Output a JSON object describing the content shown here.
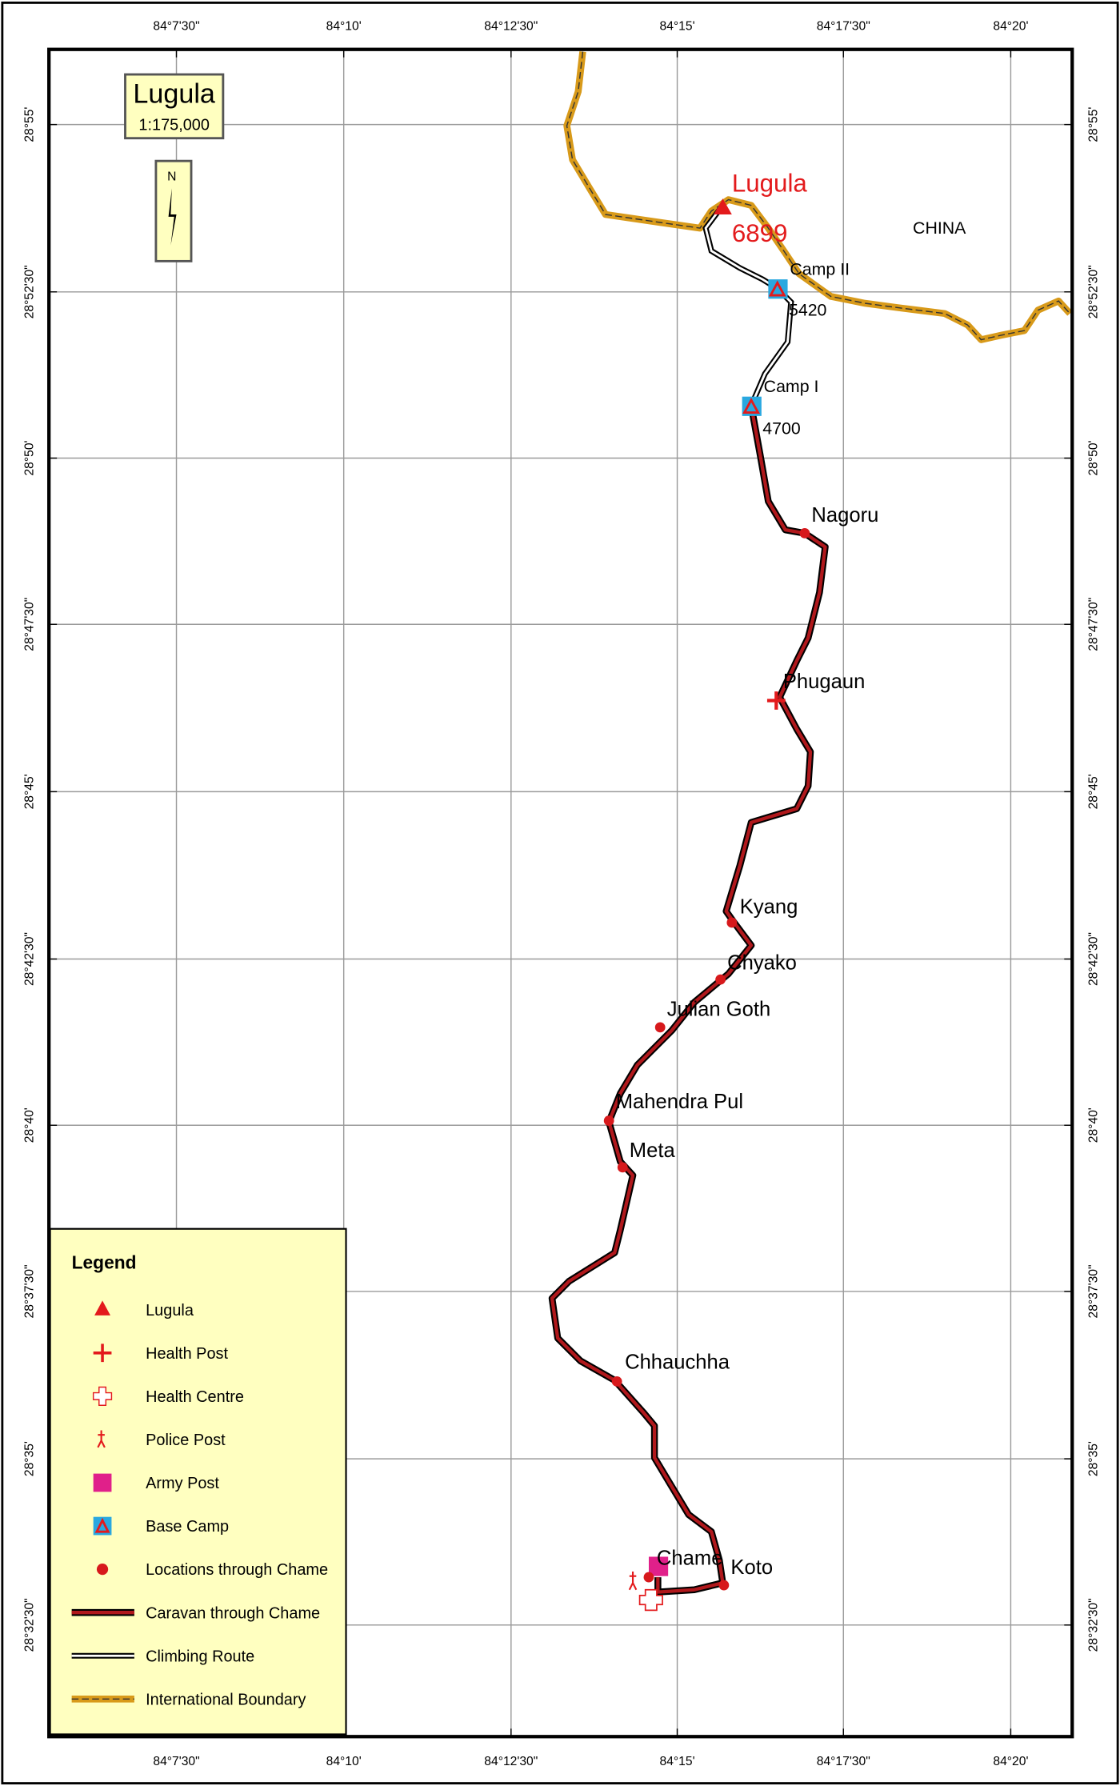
{
  "title": "Lugula",
  "scale": "1:175,000",
  "north": "N",
  "longitude_labels": [
    "84°7'30\"",
    "84°10'",
    "84°12'30\"",
    "84°15'",
    "84°17'30\"",
    "84°20'"
  ],
  "latitude_labels": [
    "28°55'",
    "28°52'30\"",
    "28°50'",
    "28°47'30\"",
    "28°45'",
    "28°42'30\"",
    "28°40'",
    "28°37'30\"",
    "28°35'",
    "28°32'30\""
  ],
  "peak": {
    "name": "Lugula",
    "elevation": 6899
  },
  "camps": [
    {
      "name": "Camp II",
      "elevation": 5420
    },
    {
      "name": "Camp I",
      "elevation": 4700
    }
  ],
  "country": "CHINA",
  "places": [
    "Nagoru",
    "Phugaun",
    "Kyang",
    "Chyako",
    "Julian Goth",
    "Mahendra Pul",
    "Meta",
    "Chhauchha",
    "Chame",
    "Koto"
  ],
  "legend": {
    "title": "Legend",
    "items": [
      "Lugula",
      "Health Post",
      "Health Centre",
      "Police Post",
      "Army Post",
      "Base Camp",
      "Locations through Chame",
      "Caravan through Chame",
      "Climbing Route",
      "International Boundary"
    ]
  }
}
